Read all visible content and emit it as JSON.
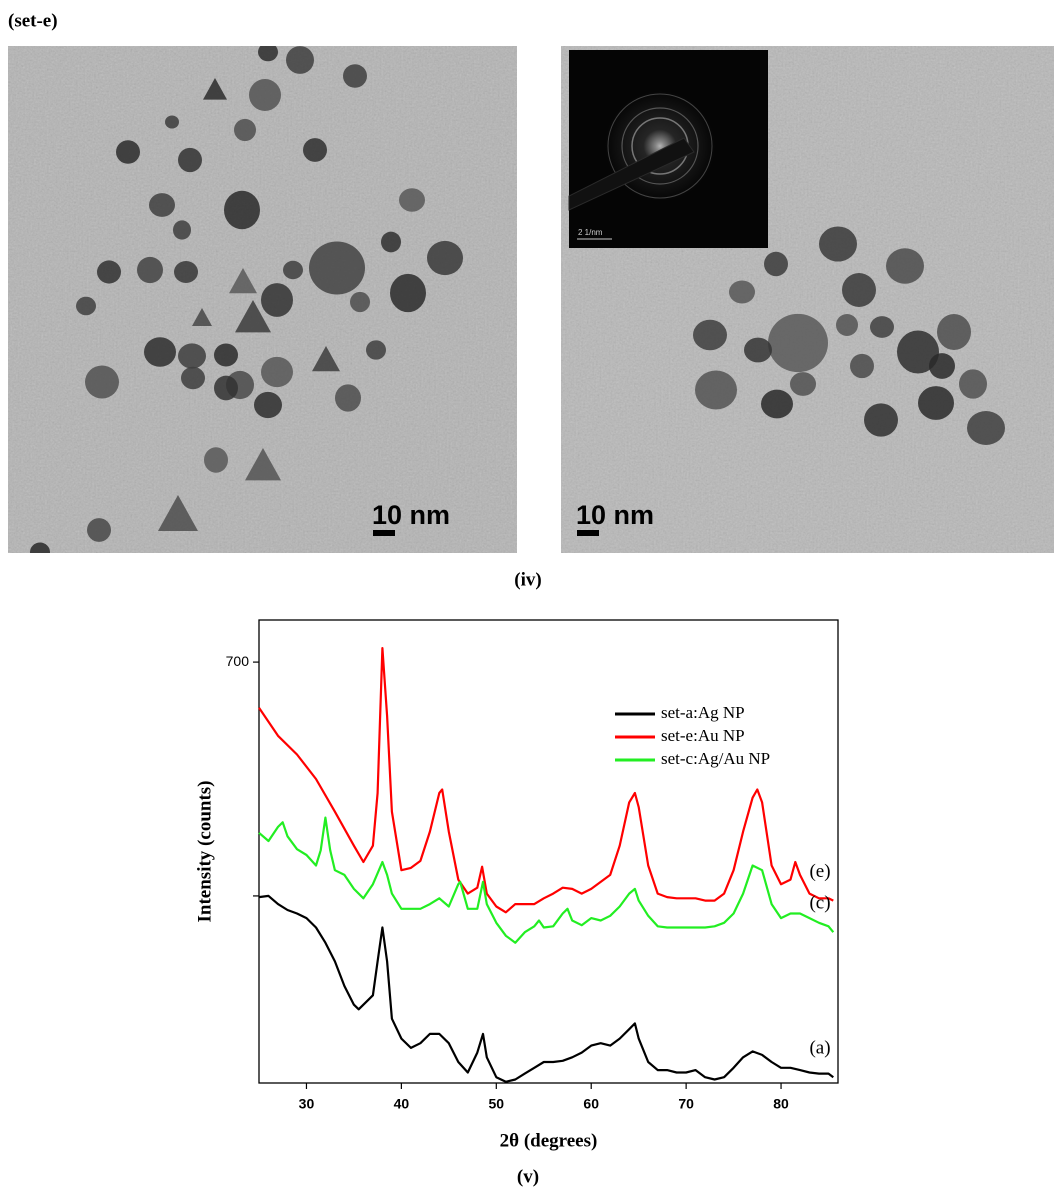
{
  "header": {
    "label": "(set-e)"
  },
  "figure_iv": {
    "panels": [
      {
        "scale_bar": "10 nm"
      },
      {
        "scale_bar": "10 nm",
        "inset_scale": "2 1/nm"
      }
    ],
    "caption": "(iv)"
  },
  "chart_data": {
    "type": "line",
    "xlabel": "2θ (degrees)",
    "ylabel": "Intensity (counts)",
    "xlim": [
      25,
      86
    ],
    "xticks": [
      30,
      40,
      50,
      60,
      70,
      80
    ],
    "ylim": [
      340,
      736
    ],
    "yticks": [
      {
        "value": 500,
        "label": null
      },
      700
    ],
    "legend": "upper right",
    "series": [
      {
        "name": "set-a:Ag NP",
        "color": "#000000",
        "label": "(a)",
        "x": [
          25,
          26,
          27,
          28,
          29,
          30,
          31,
          32,
          33,
          34,
          35,
          35.5,
          36,
          37,
          37.5,
          38,
          38.5,
          39,
          40,
          41,
          42,
          43,
          44,
          45,
          46,
          47,
          48,
          48.6,
          49,
          50,
          51,
          52,
          53,
          54,
          55,
          56,
          57,
          58,
          59,
          60,
          61,
          62,
          63,
          64,
          64.6,
          65,
          66,
          67,
          68,
          69,
          70,
          71,
          72,
          73,
          74,
          75,
          76,
          77,
          78,
          79,
          80,
          81,
          82,
          83,
          84,
          85,
          85.5
        ],
        "values": [
          499,
          500,
          493,
          488,
          485,
          481,
          473,
          460,
          444,
          423,
          407,
          403,
          407,
          415,
          444,
          473,
          444,
          395,
          378,
          370,
          374,
          382,
          382,
          374,
          358,
          349,
          366,
          382,
          362,
          345,
          341,
          343,
          348,
          353,
          358,
          358,
          359,
          362,
          366,
          372,
          374,
          372,
          378,
          386,
          391,
          378,
          358,
          351,
          351,
          349,
          349,
          351,
          345,
          343,
          345,
          353,
          362,
          367,
          364,
          358,
          353,
          353,
          351,
          349,
          348,
          348,
          345
        ]
      },
      {
        "name": "set-e:Au NP",
        "color": "#ff0000",
        "label": "(e)",
        "x": [
          25,
          27,
          29,
          31,
          33,
          35,
          36,
          37,
          37.5,
          38,
          38.5,
          39,
          40,
          41,
          42,
          43,
          44,
          44.3,
          45,
          46,
          47,
          48,
          48.5,
          49,
          50,
          51,
          52,
          53,
          54,
          55,
          56,
          57,
          58,
          59,
          60,
          61,
          62,
          63,
          64,
          64.6,
          65,
          66,
          67,
          68,
          69,
          70,
          71,
          72,
          73,
          74,
          75,
          76,
          77,
          77.5,
          78,
          79,
          80,
          81,
          81.5,
          82,
          83,
          84,
          85,
          85.5
        ],
        "values": [
          661,
          637,
          621,
          600,
          572,
          543,
          529,
          543,
          588,
          712,
          654,
          572,
          522,
          524,
          530,
          555,
          588,
          591,
          555,
          514,
          502,
          507,
          525,
          502,
          491,
          486,
          493,
          493,
          493,
          498,
          502,
          507,
          506,
          502,
          506,
          512,
          518,
          543,
          580,
          588,
          576,
          526,
          502,
          499,
          498,
          498,
          498,
          496,
          496,
          502,
          522,
          555,
          584,
          591,
          580,
          526,
          510,
          514,
          529,
          518,
          502,
          498,
          498,
          496
        ]
      },
      {
        "name": "set-c:Ag/Au NP",
        "color": "#22ee22",
        "label": "(c)",
        "x": [
          25,
          26,
          27,
          27.5,
          28,
          29,
          30,
          31,
          31.5,
          32,
          32.5,
          33,
          34,
          35,
          36,
          37,
          38,
          38.5,
          39,
          40,
          41,
          42,
          43,
          44,
          45,
          46,
          46.2,
          47,
          48,
          48.6,
          49,
          50,
          51,
          52,
          53,
          54,
          54.5,
          55,
          56,
          57,
          57.5,
          58,
          59,
          60,
          61,
          62,
          63,
          64,
          64.6,
          65,
          66,
          67,
          68,
          69,
          70,
          71,
          72,
          73,
          74,
          75,
          76,
          77,
          78,
          79,
          80,
          81,
          82,
          83,
          84,
          85,
          85.5
        ],
        "values": [
          554,
          547,
          559,
          563,
          551,
          540,
          535,
          526,
          539,
          567,
          539,
          522,
          518,
          506,
          498,
          510,
          529,
          518,
          502,
          489,
          489,
          489,
          493,
          498,
          491,
          510,
          512,
          489,
          489,
          512,
          493,
          477,
          466,
          460,
          469,
          474,
          479,
          473,
          474,
          485,
          489,
          479,
          475,
          481,
          479,
          483,
          491,
          502,
          506,
          496,
          483,
          474,
          473,
          473,
          473,
          473,
          473,
          474,
          477,
          485,
          502,
          526,
          522,
          493,
          481,
          485,
          485,
          481,
          477,
          474,
          469
        ]
      }
    ]
  },
  "caption_v": "(v)"
}
